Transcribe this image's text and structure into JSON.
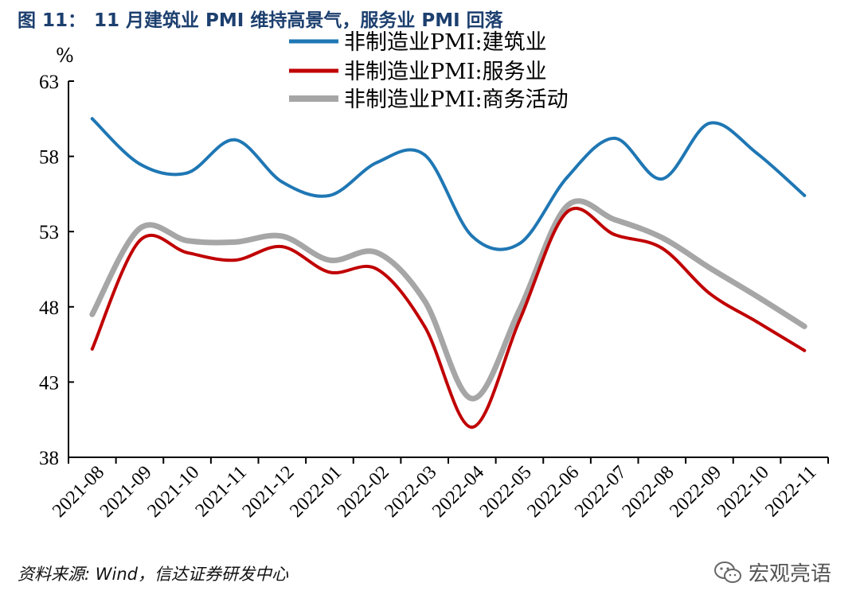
{
  "figure": {
    "label": "图 11：",
    "title": "11 月建筑业 PMI 维持高景气，服务业 PMI 回落"
  },
  "source_text": "资料来源: Wind，信达证券研发中心",
  "watermark": {
    "text": "宏观亮语",
    "icon": "wechat-icon"
  },
  "chart_data": {
    "type": "line",
    "title": "11 月建筑业 PMI 维持高景气，服务业 PMI 回落",
    "ylabel": "%",
    "xlabel": "",
    "ylim": [
      38,
      63
    ],
    "yticks": [
      38,
      43,
      48,
      53,
      58,
      63
    ],
    "grid": false,
    "legend": "top-right",
    "categories": [
      "2021-08",
      "2021-09",
      "2021-10",
      "2021-11",
      "2021-12",
      "2022-01",
      "2022-02",
      "2022-03",
      "2022-04",
      "2022-05",
      "2022-06",
      "2022-07",
      "2022-08",
      "2022-09",
      "2022-10",
      "2022-11"
    ],
    "series": [
      {
        "name": "非制造业PMI:建筑业",
        "color": "#1f77b4",
        "values": [
          60.5,
          57.5,
          56.9,
          59.1,
          56.3,
          55.4,
          57.6,
          58.1,
          52.7,
          52.2,
          56.6,
          59.2,
          56.5,
          60.2,
          58.2,
          55.4
        ]
      },
      {
        "name": "非制造业PMI:服务业",
        "color": "#c00000",
        "values": [
          45.2,
          52.4,
          51.6,
          51.1,
          52.0,
          50.3,
          50.5,
          46.7,
          40.0,
          47.1,
          54.3,
          52.8,
          51.9,
          48.9,
          47.0,
          45.1
        ]
      },
      {
        "name": "非制造业PMI:商务活动",
        "color": "#a6a6a6",
        "values": [
          47.5,
          53.2,
          52.4,
          52.3,
          52.7,
          51.1,
          51.6,
          48.4,
          41.9,
          47.8,
          54.7,
          53.8,
          52.6,
          50.6,
          48.7,
          46.7
        ]
      }
    ]
  }
}
